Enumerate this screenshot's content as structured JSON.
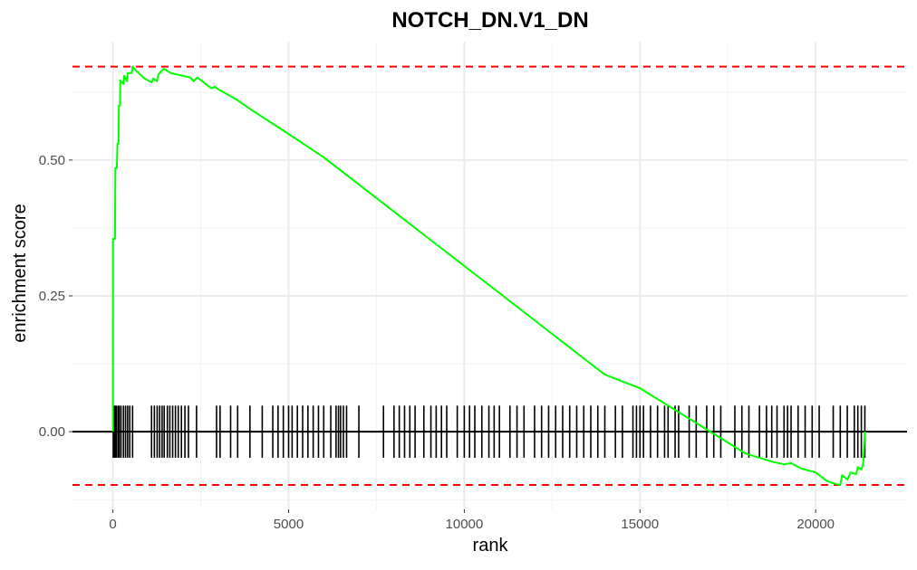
{
  "chart_data": {
    "type": "line",
    "title": "NOTCH_DN.V1_DN",
    "xlabel": "rank",
    "ylabel": "enrichment score",
    "xlim": [
      -1150,
      22600
    ],
    "ylim": [
      -0.143,
      0.718
    ],
    "x_ticks": [
      0,
      5000,
      10000,
      15000,
      20000
    ],
    "x_tick_labels": [
      "0",
      "5000",
      "10000",
      "15000",
      "20000"
    ],
    "y_ticks": [
      0.0,
      0.25,
      0.5
    ],
    "y_tick_labels": [
      "0.00",
      "0.25",
      "0.50"
    ],
    "grid": true,
    "colors": {
      "running_score": "#00ff00",
      "extreme_lines": "#ff0000",
      "hits": "#000000",
      "zero_line": "#000000"
    },
    "series": [
      {
        "values": [
          [
            0,
            0.0
          ],
          [
            2,
            0.355
          ],
          [
            60,
            0.355
          ],
          [
            70,
            0.485
          ],
          [
            110,
            0.485
          ],
          [
            130,
            0.53
          ],
          [
            160,
            0.53
          ],
          [
            170,
            0.6
          ],
          [
            200,
            0.6
          ],
          [
            210,
            0.647
          ],
          [
            300,
            0.64
          ],
          [
            320,
            0.655
          ],
          [
            400,
            0.645
          ],
          [
            420,
            0.66
          ],
          [
            540,
            0.66
          ],
          [
            560,
            0.672
          ],
          [
            650,
            0.665
          ],
          [
            900,
            0.65
          ],
          [
            1100,
            0.643
          ],
          [
            1150,
            0.65
          ],
          [
            1250,
            0.645
          ],
          [
            1300,
            0.658
          ],
          [
            1450,
            0.668
          ],
          [
            1650,
            0.66
          ],
          [
            2200,
            0.652
          ],
          [
            2300,
            0.645
          ],
          [
            2400,
            0.652
          ],
          [
            2600,
            0.642
          ],
          [
            2800,
            0.632
          ],
          [
            2900,
            0.635
          ],
          [
            3000,
            0.63
          ],
          [
            3500,
            0.612
          ],
          [
            4000,
            0.59
          ],
          [
            5000,
            0.548
          ],
          [
            6000,
            0.505
          ],
          [
            7000,
            0.455
          ],
          [
            8000,
            0.405
          ],
          [
            9000,
            0.355
          ],
          [
            10000,
            0.305
          ],
          [
            11000,
            0.255
          ],
          [
            12000,
            0.205
          ],
          [
            13000,
            0.155
          ],
          [
            14000,
            0.105
          ],
          [
            15000,
            0.08
          ],
          [
            16000,
            0.04
          ],
          [
            17000,
            0.0
          ],
          [
            17500,
            -0.02
          ],
          [
            18000,
            -0.04
          ],
          [
            18500,
            -0.05
          ],
          [
            18750,
            -0.055
          ],
          [
            19100,
            -0.06
          ],
          [
            19300,
            -0.058
          ],
          [
            19600,
            -0.068
          ],
          [
            20000,
            -0.075
          ],
          [
            20300,
            -0.09
          ],
          [
            20500,
            -0.095
          ],
          [
            20700,
            -0.098
          ],
          [
            20750,
            -0.08
          ],
          [
            20900,
            -0.088
          ],
          [
            21000,
            -0.075
          ],
          [
            21150,
            -0.078
          ],
          [
            21200,
            -0.065
          ],
          [
            21300,
            -0.07
          ],
          [
            21350,
            -0.06
          ],
          [
            21400,
            0.0
          ]
        ]
      }
    ],
    "extreme_values": {
      "max": 0.672,
      "min": -0.098
    },
    "hit_tick_range": [
      -0.048,
      0.048
    ],
    "hits": [
      10,
      40,
      70,
      100,
      150,
      180,
      230,
      300,
      360,
      420,
      480,
      560,
      1100,
      1180,
      1260,
      1330,
      1400,
      1460,
      1550,
      1620,
      1700,
      1780,
      1860,
      1950,
      2050,
      2150,
      2380,
      2950,
      3050,
      3350,
      3550,
      3900,
      4250,
      4550,
      4700,
      4850,
      5000,
      5100,
      5250,
      5400,
      5550,
      5700,
      5850,
      6000,
      6200,
      6350,
      6420,
      6480,
      6560,
      6650,
      7000,
      7700,
      8000,
      8150,
      8300,
      8450,
      8600,
      8850,
      9050,
      9200,
      9350,
      9500,
      9800,
      10000,
      10150,
      10300,
      10500,
      10700,
      10850,
      11000,
      11300,
      11500,
      11700,
      12000,
      12200,
      12400,
      12600,
      12800,
      13000,
      13200,
      13400,
      13600,
      13800,
      14000,
      14300,
      14500,
      14800,
      14900,
      15000,
      15100,
      15300,
      15500,
      15700,
      15800,
      16000,
      16100,
      16400,
      16600,
      16900,
      17100,
      17300,
      17700,
      17900,
      18100,
      18400,
      18600,
      18750,
      18900,
      19100,
      19200,
      19300,
      19500,
      19700,
      19900,
      20100,
      20500,
      20700,
      20900,
      21100,
      21200,
      21300,
      21400
    ]
  }
}
